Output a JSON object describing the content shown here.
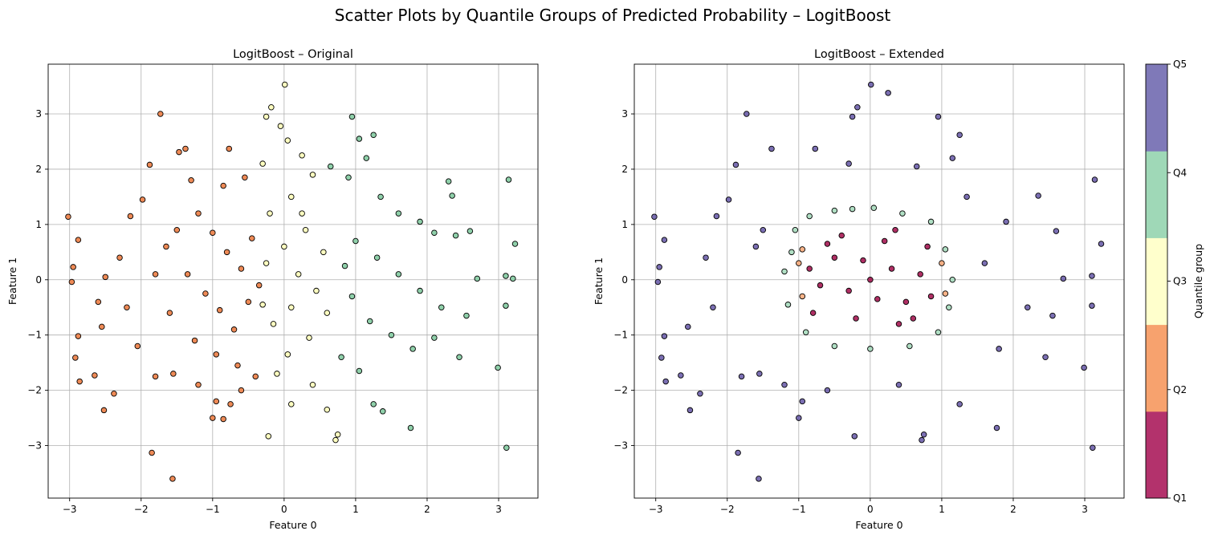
{
  "suptitle": "Scatter Plots by Quantile Groups of Predicted Probability – LogitBoost",
  "colorbar": {
    "label": "Quantile group",
    "ticks": [
      "Q1",
      "Q2",
      "Q3",
      "Q4",
      "Q5"
    ],
    "colors": [
      "#b3326c",
      "#f7a26e",
      "#ffffcc",
      "#9fd8b7",
      "#7f79b8"
    ]
  },
  "chart_data": [
    {
      "type": "scatter",
      "title": "LogitBoost – Original",
      "xlabel": "Feature 0",
      "ylabel": "Feature 1",
      "xlim": [
        -3.3,
        3.55
      ],
      "ylim": [
        -3.95,
        3.9
      ],
      "xticks": [
        -3,
        -2,
        -1,
        0,
        1,
        2,
        3
      ],
      "yticks": [
        -3,
        -2,
        -1,
        0,
        1,
        2,
        3
      ],
      "grid": true,
      "color_by": "quantile group of predicted probability (grouping driven mainly by Feature 0)",
      "group_colors": [
        "#ee8a56",
        "#ffffc0",
        "#8fd0aa"
      ],
      "group_names": [
        "Q2",
        "Q3",
        "Q4"
      ],
      "points": [
        [
          -3.02,
          1.14,
          0
        ],
        [
          -2.88,
          0.72,
          0
        ],
        [
          -2.95,
          0.23,
          0
        ],
        [
          -2.97,
          -0.04,
          0
        ],
        [
          -2.92,
          -1.41,
          0
        ],
        [
          -2.88,
          -1.02,
          0
        ],
        [
          -2.86,
          -1.84,
          0
        ],
        [
          -2.65,
          -1.73,
          0
        ],
        [
          -2.55,
          -0.85,
          0
        ],
        [
          -2.52,
          -2.36,
          0
        ],
        [
          -2.38,
          -2.06,
          0
        ],
        [
          -1.85,
          -3.13,
          0
        ],
        [
          -1.56,
          -3.6,
          0
        ],
        [
          -1.73,
          3.0,
          0
        ],
        [
          -1.38,
          2.37,
          0
        ],
        [
          -1.47,
          2.31,
          0
        ],
        [
          -1.88,
          2.08,
          0
        ],
        [
          -0.77,
          2.37,
          0
        ],
        [
          -1.98,
          1.45,
          0
        ],
        [
          -2.15,
          1.15,
          0
        ],
        [
          -2.3,
          0.4,
          0
        ],
        [
          -2.2,
          -0.5,
          0
        ],
        [
          -2.05,
          -1.2,
          0
        ],
        [
          -1.8,
          -1.75,
          0
        ],
        [
          -1.55,
          -1.7,
          0
        ],
        [
          -1.2,
          -1.9,
          0
        ],
        [
          -0.75,
          -2.25,
          0
        ],
        [
          -0.95,
          -2.2,
          0
        ],
        [
          -1.0,
          -2.5,
          0
        ],
        [
          -0.85,
          -2.52,
          0
        ],
        [
          -0.6,
          -2.0,
          0
        ],
        [
          -0.4,
          -1.75,
          0
        ],
        [
          -1.3,
          1.8,
          0
        ],
        [
          -0.85,
          1.7,
          0
        ],
        [
          -0.55,
          1.85,
          0
        ],
        [
          -1.65,
          0.6,
          0
        ],
        [
          -1.5,
          0.9,
          0
        ],
        [
          -1.2,
          1.2,
          0
        ],
        [
          -1.0,
          0.85,
          0
        ],
        [
          -0.8,
          0.5,
          0
        ],
        [
          -0.6,
          0.2,
          0
        ],
        [
          -1.35,
          0.1,
          0
        ],
        [
          -1.1,
          -0.25,
          0
        ],
        [
          -0.9,
          -0.55,
          0
        ],
        [
          -0.7,
          -0.9,
          0
        ],
        [
          -0.5,
          -0.4,
          0
        ],
        [
          -1.6,
          -0.6,
          0
        ],
        [
          -1.25,
          -1.1,
          0
        ],
        [
          -0.95,
          -1.35,
          0
        ],
        [
          -0.65,
          -1.55,
          0
        ],
        [
          -0.45,
          0.75,
          0
        ],
        [
          -0.35,
          -0.1,
          0
        ],
        [
          -1.8,
          0.1,
          0
        ],
        [
          -2.5,
          0.05,
          0
        ],
        [
          -2.6,
          -0.4,
          0
        ],
        [
          -0.25,
          2.95,
          1
        ],
        [
          -0.18,
          3.12,
          1
        ],
        [
          0.01,
          3.53,
          1
        ],
        [
          -0.05,
          2.78,
          1
        ],
        [
          0.05,
          2.52,
          1
        ],
        [
          -0.3,
          2.1,
          1
        ],
        [
          0.25,
          2.25,
          1
        ],
        [
          0.4,
          1.9,
          1
        ],
        [
          0.1,
          1.5,
          1
        ],
        [
          -0.2,
          1.2,
          1
        ],
        [
          0.3,
          0.9,
          1
        ],
        [
          0.0,
          0.6,
          1
        ],
        [
          -0.25,
          0.3,
          1
        ],
        [
          0.2,
          0.1,
          1
        ],
        [
          0.45,
          -0.2,
          1
        ],
        [
          0.1,
          -0.5,
          1
        ],
        [
          -0.15,
          -0.8,
          1
        ],
        [
          0.35,
          -1.05,
          1
        ],
        [
          0.05,
          -1.35,
          1
        ],
        [
          -0.1,
          -1.7,
          1
        ],
        [
          0.4,
          -1.9,
          1
        ],
        [
          0.1,
          -2.25,
          1
        ],
        [
          0.6,
          -2.35,
          1
        ],
        [
          0.75,
          -2.8,
          1
        ],
        [
          0.72,
          -2.9,
          1
        ],
        [
          -0.22,
          -2.83,
          1
        ],
        [
          0.55,
          0.5,
          1
        ],
        [
          0.6,
          -0.6,
          1
        ],
        [
          -0.3,
          -0.45,
          1
        ],
        [
          0.25,
          1.2,
          1
        ],
        [
          0.95,
          2.95,
          2
        ],
        [
          1.05,
          2.55,
          2
        ],
        [
          1.25,
          2.62,
          2
        ],
        [
          1.15,
          2.2,
          2
        ],
        [
          0.65,
          2.05,
          2
        ],
        [
          0.9,
          1.85,
          2
        ],
        [
          1.35,
          1.5,
          2
        ],
        [
          1.6,
          1.2,
          2
        ],
        [
          1.9,
          1.05,
          2
        ],
        [
          2.1,
          0.85,
          2
        ],
        [
          2.35,
          1.52,
          2
        ],
        [
          2.4,
          0.8,
          2
        ],
        [
          2.6,
          0.88,
          2
        ],
        [
          2.7,
          0.02,
          2
        ],
        [
          2.55,
          -0.65,
          2
        ],
        [
          2.2,
          -0.5,
          2
        ],
        [
          1.9,
          -0.2,
          2
        ],
        [
          1.6,
          0.1,
          2
        ],
        [
          1.3,
          0.4,
          2
        ],
        [
          1.0,
          0.7,
          2
        ],
        [
          0.85,
          0.25,
          2
        ],
        [
          0.95,
          -0.3,
          2
        ],
        [
          1.2,
          -0.75,
          2
        ],
        [
          1.5,
          -1.0,
          2
        ],
        [
          1.8,
          -1.25,
          2
        ],
        [
          2.1,
          -1.05,
          2
        ],
        [
          2.45,
          -1.4,
          2
        ],
        [
          2.99,
          -1.59,
          2
        ],
        [
          3.1,
          0.07,
          2
        ],
        [
          3.1,
          -0.47,
          2
        ],
        [
          3.14,
          1.81,
          2
        ],
        [
          3.23,
          0.65,
          2
        ],
        [
          3.2,
          0.02,
          2
        ],
        [
          3.11,
          -3.04,
          2
        ],
        [
          1.77,
          -2.68,
          2
        ],
        [
          1.25,
          -2.25,
          2
        ],
        [
          1.38,
          -2.38,
          2
        ],
        [
          1.05,
          -1.65,
          2
        ],
        [
          0.8,
          -1.4,
          2
        ],
        [
          2.3,
          1.78,
          2
        ]
      ]
    },
    {
      "type": "scatter",
      "title": "LogitBoost – Extended",
      "xlabel": "Feature 0",
      "ylabel": "Feature 1",
      "xlim": [
        -3.3,
        3.55
      ],
      "ylim": [
        -3.95,
        3.9
      ],
      "xticks": [
        -3,
        -2,
        -1,
        0,
        1,
        2,
        3
      ],
      "yticks": [
        -3,
        -2,
        -1,
        0,
        1,
        2,
        3
      ],
      "grid": true,
      "color_by": "quantile group of predicted probability (concentric rings around the origin)",
      "group_colors": [
        "#9e0142",
        "#f7a26e",
        "#9fd8b7",
        "#5e4fa2"
      ],
      "group_names": [
        "Q1",
        "Q2",
        "Q4",
        "Q5"
      ],
      "points": [
        [
          -3.02,
          1.14,
          3
        ],
        [
          -2.88,
          0.72,
          3
        ],
        [
          -2.95,
          0.23,
          3
        ],
        [
          -2.97,
          -0.04,
          3
        ],
        [
          -2.92,
          -1.41,
          3
        ],
        [
          -2.88,
          -1.02,
          3
        ],
        [
          -2.86,
          -1.84,
          3
        ],
        [
          -2.65,
          -1.73,
          3
        ],
        [
          -2.55,
          -0.85,
          3
        ],
        [
          -2.52,
          -2.36,
          3
        ],
        [
          -2.38,
          -2.06,
          3
        ],
        [
          -1.85,
          -3.13,
          3
        ],
        [
          -1.56,
          -3.6,
          3
        ],
        [
          -1.73,
          3.0,
          3
        ],
        [
          -1.38,
          2.37,
          3
        ],
        [
          -1.88,
          2.08,
          3
        ],
        [
          -0.77,
          2.37,
          3
        ],
        [
          -1.98,
          1.45,
          3
        ],
        [
          -2.15,
          1.15,
          3
        ],
        [
          -2.3,
          0.4,
          3
        ],
        [
          -2.2,
          -0.5,
          3
        ],
        [
          -1.8,
          -1.75,
          3
        ],
        [
          -1.2,
          -1.9,
          3
        ],
        [
          -0.95,
          -2.2,
          3
        ],
        [
          -1.0,
          -2.5,
          3
        ],
        [
          -0.3,
          2.1,
          3
        ],
        [
          -0.25,
          2.95,
          3
        ],
        [
          -0.18,
          3.12,
          3
        ],
        [
          0.01,
          3.53,
          3
        ],
        [
          0.25,
          3.38,
          3
        ],
        [
          0.95,
          2.95,
          3
        ],
        [
          1.25,
          2.62,
          3
        ],
        [
          1.15,
          2.2,
          3
        ],
        [
          0.65,
          2.05,
          3
        ],
        [
          1.35,
          1.5,
          3
        ],
        [
          1.9,
          1.05,
          3
        ],
        [
          2.35,
          1.52,
          3
        ],
        [
          2.6,
          0.88,
          3
        ],
        [
          2.7,
          0.02,
          3
        ],
        [
          2.55,
          -0.65,
          3
        ],
        [
          2.2,
          -0.5,
          3
        ],
        [
          1.8,
          -1.25,
          3
        ],
        [
          2.45,
          -1.4,
          3
        ],
        [
          2.99,
          -1.59,
          3
        ],
        [
          3.1,
          0.07,
          3
        ],
        [
          3.1,
          -0.47,
          3
        ],
        [
          3.14,
          1.81,
          3
        ],
        [
          3.23,
          0.65,
          3
        ],
        [
          3.11,
          -3.04,
          3
        ],
        [
          1.77,
          -2.68,
          3
        ],
        [
          1.25,
          -2.25,
          3
        ],
        [
          0.75,
          -2.8,
          3
        ],
        [
          0.72,
          -2.9,
          3
        ],
        [
          -0.22,
          -2.83,
          3
        ],
        [
          0.4,
          -1.9,
          3
        ],
        [
          -0.6,
          -2.0,
          3
        ],
        [
          -1.55,
          -1.7,
          3
        ],
        [
          -1.6,
          0.6,
          3
        ],
        [
          -1.5,
          0.9,
          3
        ],
        [
          1.6,
          0.3,
          3
        ],
        [
          -1.05,
          0.9,
          2
        ],
        [
          -0.85,
          1.15,
          2
        ],
        [
          -0.5,
          1.25,
          2
        ],
        [
          0.05,
          1.3,
          2
        ],
        [
          0.45,
          1.2,
          2
        ],
        [
          0.85,
          1.05,
          2
        ],
        [
          1.05,
          0.55,
          2
        ],
        [
          1.15,
          0.0,
          2
        ],
        [
          1.1,
          -0.5,
          2
        ],
        [
          0.95,
          -0.95,
          2
        ],
        [
          0.55,
          -1.2,
          2
        ],
        [
          0.0,
          -1.25,
          2
        ],
        [
          -0.5,
          -1.2,
          2
        ],
        [
          -0.9,
          -0.95,
          2
        ],
        [
          -1.15,
          -0.45,
          2
        ],
        [
          -1.2,
          0.15,
          2
        ],
        [
          -1.1,
          0.5,
          2
        ],
        [
          -0.25,
          1.28,
          2
        ],
        [
          -1.0,
          0.3,
          1
        ],
        [
          -0.95,
          -0.3,
          1
        ],
        [
          1.0,
          0.3,
          1
        ],
        [
          1.05,
          -0.25,
          1
        ],
        [
          -0.95,
          0.55,
          1
        ],
        [
          0.0,
          0.0,
          0
        ],
        [
          0.3,
          0.2,
          0
        ],
        [
          -0.3,
          -0.2,
          0
        ],
        [
          0.5,
          -0.4,
          0
        ],
        [
          -0.5,
          0.4,
          0
        ],
        [
          0.2,
          0.7,
          0
        ],
        [
          -0.2,
          -0.7,
          0
        ],
        [
          0.7,
          0.1,
          0
        ],
        [
          -0.7,
          -0.1,
          0
        ],
        [
          0.4,
          -0.8,
          0
        ],
        [
          -0.4,
          0.8,
          0
        ],
        [
          0.8,
          0.6,
          0
        ],
        [
          -0.8,
          -0.6,
          0
        ],
        [
          0.6,
          -0.7,
          0
        ],
        [
          -0.6,
          0.65,
          0
        ],
        [
          0.1,
          -0.35,
          0
        ],
        [
          -0.1,
          0.35,
          0
        ],
        [
          0.85,
          -0.3,
          0
        ],
        [
          -0.85,
          0.2,
          0
        ],
        [
          0.35,
          0.9,
          0
        ]
      ]
    }
  ]
}
